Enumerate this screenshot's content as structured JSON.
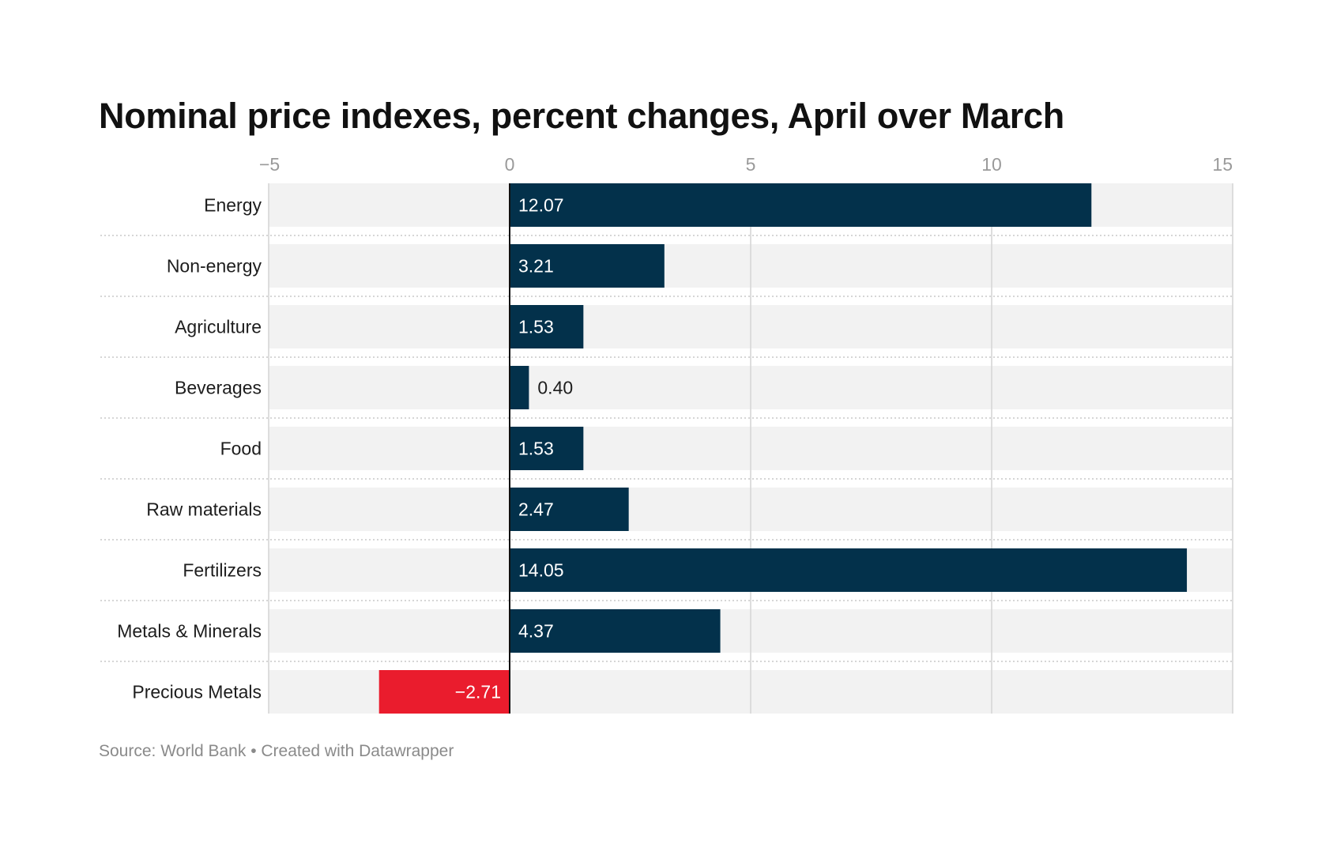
{
  "chart_data": {
    "type": "bar",
    "orientation": "horizontal",
    "title": "Nominal price indexes, percent changes, April over March",
    "categories": [
      "Energy",
      "Non-energy",
      "Agriculture",
      "Beverages",
      "Food",
      "Raw materials",
      "Fertilizers",
      "Metals & Minerals",
      "Precious Metals"
    ],
    "values": [
      12.07,
      3.21,
      1.53,
      0.4,
      1.53,
      2.47,
      14.05,
      4.37,
      -2.71
    ],
    "value_labels": [
      "12.07",
      "3.21",
      "1.53",
      "0.40",
      "1.53",
      "2.47",
      "14.05",
      "4.37",
      "−2.71"
    ],
    "xlim": [
      -5,
      15
    ],
    "x_ticks": [
      -5,
      0,
      5,
      10,
      15
    ],
    "x_tick_labels": [
      "−5",
      "0",
      "5",
      "10",
      "15"
    ],
    "tick_position": "top",
    "grid": true,
    "colors": {
      "positive": "#03314b",
      "negative": "#ea1c2d",
      "row_background": "#f2f2f2",
      "gridline": "#d4d4d4",
      "zero_line": "#111111"
    }
  },
  "footer": {
    "source": "Source: World Bank • Created with Datawrapper"
  }
}
